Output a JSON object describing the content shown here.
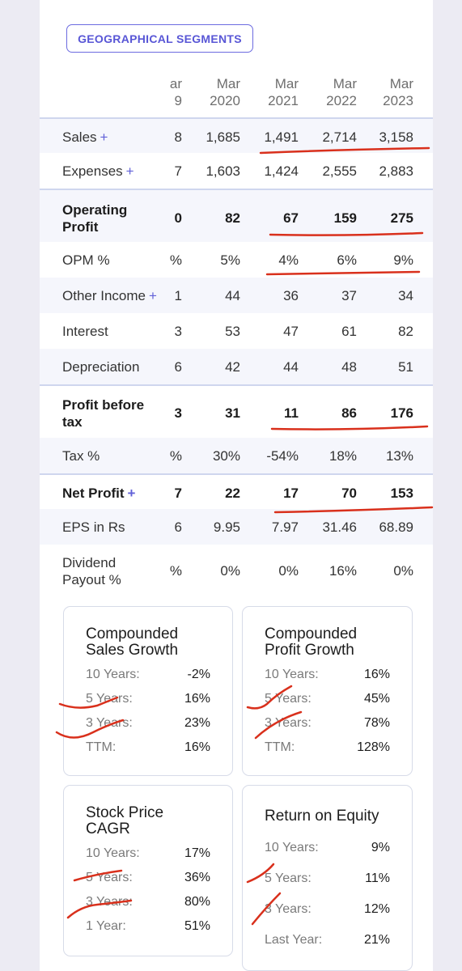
{
  "segments_button": "GEOGRAPHICAL SEGMENTS",
  "headers": [
    {
      "l1": "ar",
      "l2": "9"
    },
    {
      "l1": "Mar",
      "l2": "2020"
    },
    {
      "l1": "Mar",
      "l2": "2021"
    },
    {
      "l1": "Mar",
      "l2": "2022"
    },
    {
      "l1": "Mar",
      "l2": "2023"
    }
  ],
  "rows": [
    {
      "label": "Sales",
      "plus": "+",
      "values": [
        "8",
        "1,685",
        "1,491",
        "2,714",
        "3,158"
      ]
    },
    {
      "label": "Expenses",
      "plus": "+",
      "values": [
        "7",
        "1,603",
        "1,424",
        "2,555",
        "2,883"
      ]
    },
    {
      "label_l1": "Operating",
      "label_l2": "Profit",
      "values": [
        "0",
        "82",
        "67",
        "159",
        "275"
      ]
    },
    {
      "label": "OPM %",
      "values": [
        "%",
        "5%",
        "4%",
        "6%",
        "9%"
      ]
    },
    {
      "label": "Other Income",
      "plus": "+",
      "values": [
        "1",
        "44",
        "36",
        "37",
        "34"
      ]
    },
    {
      "label": "Interest",
      "values": [
        "3",
        "53",
        "47",
        "61",
        "82"
      ]
    },
    {
      "label": "Depreciation",
      "values": [
        "6",
        "42",
        "44",
        "48",
        "51"
      ]
    },
    {
      "label_l1": "Profit before",
      "label_l2": "tax",
      "values": [
        "3",
        "31",
        "11",
        "86",
        "176"
      ]
    },
    {
      "label": "Tax %",
      "values": [
        "%",
        "30%",
        "-54%",
        "18%",
        "13%"
      ]
    },
    {
      "label": "Net Profit",
      "plus": "+",
      "values": [
        "7",
        "22",
        "17",
        "70",
        "153"
      ]
    },
    {
      "label": "EPS in Rs",
      "values": [
        "6",
        "9.95",
        "7.97",
        "31.46",
        "68.89"
      ]
    },
    {
      "label_l1": "Dividend",
      "label_l2": "Payout %",
      "values": [
        "%",
        "0%",
        "0%",
        "16%",
        "0%"
      ]
    }
  ],
  "boxes": {
    "sales_growth": {
      "title_l1": "Compounded",
      "title_l2": "Sales Growth",
      "items": [
        {
          "label": "10 Years:",
          "value": "-2%"
        },
        {
          "label": "5 Years:",
          "value": "16%"
        },
        {
          "label": "3 Years:",
          "value": "23%"
        },
        {
          "label": "TTM:",
          "value": "16%"
        }
      ]
    },
    "profit_growth": {
      "title_l1": "Compounded",
      "title_l2": "Profit Growth",
      "items": [
        {
          "label": "10 Years:",
          "value": "16%"
        },
        {
          "label": "5 Years:",
          "value": "45%"
        },
        {
          "label": "3 Years:",
          "value": "78%"
        },
        {
          "label": "TTM:",
          "value": "128%"
        }
      ]
    },
    "stock_cagr": {
      "title_l1": "Stock Price",
      "title_l2": "CAGR",
      "items": [
        {
          "label": "10 Years:",
          "value": "17%"
        },
        {
          "label": "5 Years:",
          "value": "36%"
        },
        {
          "label": "3 Years:",
          "value": "80%"
        },
        {
          "label": "1 Year:",
          "value": "51%"
        }
      ]
    },
    "roe": {
      "title_l1": "Return on Equity",
      "items": [
        {
          "label": "10 Years:",
          "value": "9%"
        },
        {
          "label": "5 Years:",
          "value": "11%"
        },
        {
          "label": "3 Years:",
          "value": "12%"
        },
        {
          "label": "Last Year:",
          "value": "21%"
        }
      ]
    }
  },
  "colors": {
    "accent": "#5856d6",
    "annotation": "#d9301c",
    "alt_row": "#f5f6fc"
  }
}
